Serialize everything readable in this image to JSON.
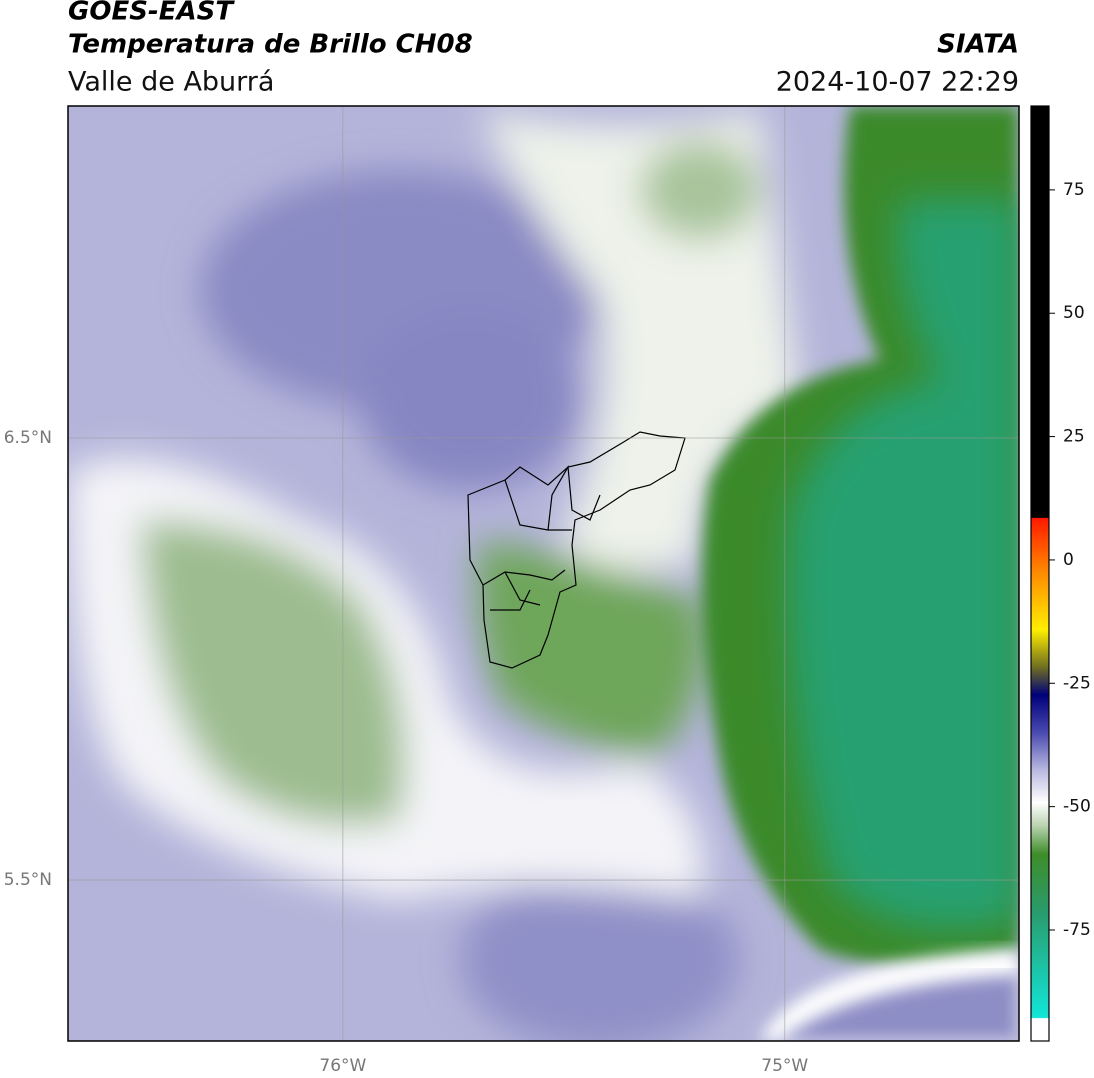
{
  "header": {
    "source": "GOES-EAST",
    "product": "Temperatura de Brillo CH08",
    "region": "Valle de Aburrá",
    "agency": "SIATA",
    "timestamp": "2024-10-07 22:29"
  },
  "map": {
    "xlim": [
      -76.622,
      -74.47
    ],
    "ylim": [
      5.136,
      7.251
    ],
    "xticks": [
      {
        "value": -76,
        "label": "76°W"
      },
      {
        "value": -75,
        "label": "75°W"
      }
    ],
    "yticks": [
      {
        "value": 5.5,
        "label": "5.5°N"
      },
      {
        "value": 6.5,
        "label": "6.5°N"
      }
    ],
    "grid": true
  },
  "colorbar": {
    "ylim": [
      -97.5,
      92
    ],
    "yticks": [
      75,
      50,
      25,
      0,
      -25,
      -50,
      -75
    ]
  }
}
